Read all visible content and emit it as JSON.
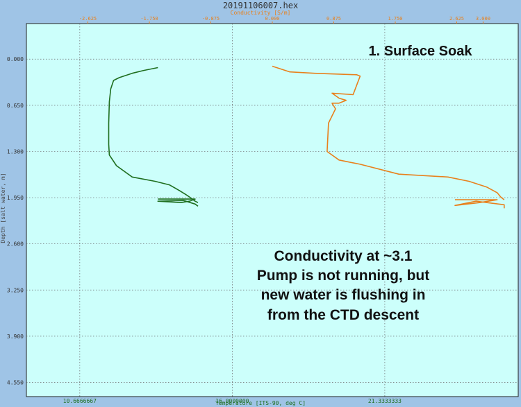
{
  "chart_data": {
    "type": "line",
    "title": "20191106007.hex",
    "x_top": {
      "label": "Conductivity [S/m]",
      "ticks": [
        "-2.625",
        "-1.750",
        "-0.875",
        "0.000",
        "0.875",
        "1.750",
        "2.625",
        "3.000"
      ],
      "range": [
        -3.5,
        3.5
      ],
      "color": "#e8801c"
    },
    "x_bottom": {
      "label": "Temperature [ITS-90, deg C]",
      "ticks": [
        "10.6666667",
        "16.0000000",
        "21.3333333"
      ],
      "range": [
        8.8,
        26.0
      ],
      "color": "#1e8a1e"
    },
    "y": {
      "label": "Depth [salt water, m]",
      "ticks": [
        "0.000",
        "0.650",
        "1.300",
        "1.950",
        "2.600",
        "3.250",
        "3.900",
        "4.550"
      ],
      "range": [
        -0.5,
        4.75
      ],
      "reversed": true
    },
    "grid": true,
    "series": [
      {
        "axis": "bottom",
        "color": "#1e6e1e",
        "points": [
          [
            13.4,
            0.12
          ],
          [
            12.9,
            0.16
          ],
          [
            12.5,
            0.2
          ],
          [
            12.05,
            0.26
          ],
          [
            11.85,
            0.3
          ],
          [
            11.75,
            0.42
          ],
          [
            11.7,
            0.6
          ],
          [
            11.68,
            0.9
          ],
          [
            11.68,
            1.2
          ],
          [
            11.7,
            1.35
          ],
          [
            11.95,
            1.5
          ],
          [
            12.5,
            1.66
          ],
          [
            13.3,
            1.72
          ],
          [
            13.8,
            1.77
          ],
          [
            14.15,
            1.85
          ],
          [
            14.35,
            1.9
          ],
          [
            14.5,
            1.94
          ],
          [
            14.6,
            1.97
          ],
          [
            14.7,
            2.0
          ],
          [
            14.8,
            2.02
          ]
        ]
      },
      {
        "axis": "bottom",
        "color": "#1e6e1e",
        "points": [
          [
            13.4,
            1.97
          ],
          [
            14.7,
            1.97
          ],
          [
            14.5,
            2.0
          ],
          [
            14.2,
            2.02
          ],
          [
            13.4,
            2.0
          ],
          [
            14.3,
            1.99
          ],
          [
            14.7,
            2.04
          ],
          [
            14.8,
            2.07
          ]
        ]
      },
      {
        "axis": "top",
        "color": "#e8801c",
        "points": [
          [
            0.0,
            0.1
          ],
          [
            0.25,
            0.18
          ],
          [
            0.6,
            0.2
          ],
          [
            1.2,
            0.22
          ],
          [
            1.25,
            0.24
          ],
          [
            1.15,
            0.5
          ],
          [
            0.85,
            0.48
          ],
          [
            0.95,
            0.55
          ],
          [
            1.05,
            0.58
          ],
          [
            0.95,
            0.62
          ],
          [
            0.85,
            0.62
          ],
          [
            0.9,
            0.7
          ],
          [
            0.8,
            0.9
          ],
          [
            0.78,
            1.3
          ],
          [
            0.95,
            1.42
          ],
          [
            1.25,
            1.48
          ],
          [
            1.8,
            1.62
          ],
          [
            2.5,
            1.66
          ],
          [
            2.8,
            1.72
          ],
          [
            3.05,
            1.8
          ],
          [
            3.2,
            1.88
          ],
          [
            3.25,
            1.94
          ],
          [
            3.3,
            1.98
          ]
        ]
      },
      {
        "axis": "top",
        "color": "#e8801c",
        "points": [
          [
            2.6,
            1.98
          ],
          [
            3.2,
            1.98
          ],
          [
            2.95,
            2.02
          ],
          [
            2.6,
            2.06
          ],
          [
            2.9,
            2.0
          ],
          [
            3.3,
            2.05
          ],
          [
            3.3,
            2.1
          ]
        ]
      }
    ],
    "annotations": [
      {
        "lines": [
          "1. Surface Soak"
        ]
      },
      {
        "lines": [
          "Conductivity at ~3.1",
          "Pump is not running, but",
          "new water is flushing in",
          "from the CTD descent"
        ]
      }
    ]
  }
}
